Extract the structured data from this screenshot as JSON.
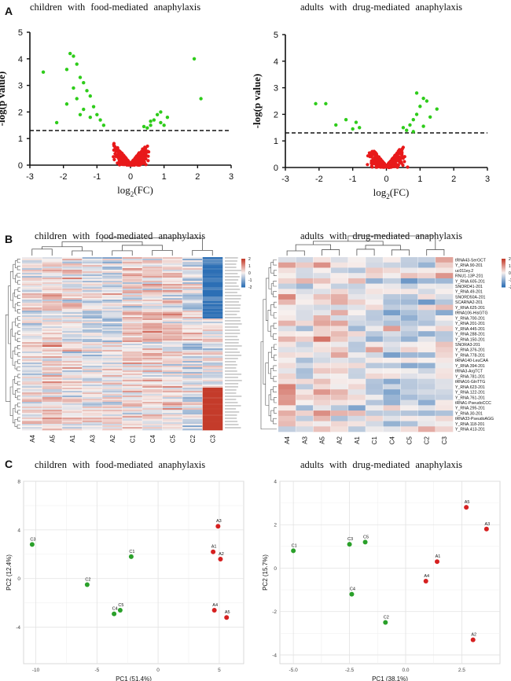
{
  "figure": {
    "panels": [
      "A",
      "B",
      "C"
    ],
    "titles": {
      "left": "children with food-mediated anaphylaxis",
      "right": "adults with drug-mediated anaphylaxis"
    }
  },
  "colors": {
    "significant": "#2ecc1a",
    "nonsignificant": "#e8191a",
    "pca_green": "#2aa02a",
    "pca_red": "#d62020",
    "heat_high": "#c43b2a",
    "heat_mid": "#f7f0ee",
    "heat_low": "#2c6fb5"
  },
  "chart_data": [
    {
      "id": "volcano-children",
      "type": "scatter",
      "title": "children with food-mediated anaphylaxis",
      "xlabel": "log2(FC)",
      "ylabel": "-log(p value)",
      "xlim": [
        -3,
        3
      ],
      "ylim": [
        0,
        5
      ],
      "xticks": [
        "-3",
        "-2",
        "-1",
        "0",
        "1",
        "2",
        "3"
      ],
      "yticks": [
        "0",
        "1",
        "2",
        "3",
        "4",
        "5"
      ],
      "threshold": 1.3,
      "significant_points": [
        [
          -2.6,
          3.5
        ],
        [
          -1.8,
          4.2
        ],
        [
          -1.7,
          4.1
        ],
        [
          -1.6,
          3.8
        ],
        [
          -1.9,
          3.6
        ],
        [
          -1.5,
          3.3
        ],
        [
          -1.4,
          3.1
        ],
        [
          -1.7,
          2.9
        ],
        [
          -1.3,
          2.8
        ],
        [
          -1.2,
          2.6
        ],
        [
          -1.6,
          2.5
        ],
        [
          -1.9,
          2.3
        ],
        [
          -1.1,
          2.2
        ],
        [
          -1.4,
          2.1
        ],
        [
          -2.2,
          1.6
        ],
        [
          -1.0,
          1.9
        ],
        [
          -1.2,
          1.8
        ],
        [
          -0.9,
          1.7
        ],
        [
          -0.8,
          1.5
        ],
        [
          -1.5,
          1.9
        ],
        [
          0.5,
          1.4
        ],
        [
          0.6,
          1.5
        ],
        [
          0.7,
          1.7
        ],
        [
          0.8,
          1.9
        ],
        [
          0.9,
          1.6
        ],
        [
          1.0,
          1.5
        ],
        [
          0.4,
          1.45
        ],
        [
          1.1,
          1.8
        ],
        [
          1.9,
          4.0
        ],
        [
          2.1,
          2.5
        ],
        [
          0.9,
          2.0
        ],
        [
          0.6,
          1.65
        ]
      ],
      "nonsignificant_points": []
    },
    {
      "id": "volcano-adults",
      "type": "scatter",
      "title": "adults with drug-mediated anaphylaxis",
      "xlabel": "log2(FC)",
      "ylabel": "-log(p value)",
      "xlim": [
        -3,
        3
      ],
      "ylim": [
        0,
        5
      ],
      "xticks": [
        "-3",
        "-2",
        "-1",
        "0",
        "1",
        "2",
        "3"
      ],
      "yticks": [
        "0",
        "1",
        "2",
        "3",
        "4",
        "5"
      ],
      "threshold": 1.3,
      "significant_points": [
        [
          -2.1,
          2.4
        ],
        [
          -1.8,
          2.4
        ],
        [
          -1.2,
          1.8
        ],
        [
          -1.5,
          1.6
        ],
        [
          -0.8,
          1.5
        ],
        [
          -0.9,
          1.7
        ],
        [
          -1.0,
          1.45
        ],
        [
          0.5,
          1.5
        ],
        [
          0.7,
          1.6
        ],
        [
          0.8,
          1.8
        ],
        [
          0.9,
          2.0
        ],
        [
          1.0,
          2.3
        ],
        [
          1.1,
          2.6
        ],
        [
          0.9,
          2.8
        ],
        [
          1.2,
          2.5
        ],
        [
          1.3,
          1.9
        ],
        [
          1.5,
          2.2
        ],
        [
          0.6,
          1.4
        ],
        [
          1.1,
          1.55
        ],
        [
          0.8,
          1.35
        ]
      ],
      "nonsignificant_points": []
    },
    {
      "id": "heatmap-children",
      "type": "heatmap",
      "title": "children with food-mediated anaphylaxis",
      "columns": [
        "A4",
        "A5",
        "A1",
        "A3",
        "A2",
        "C1",
        "C4",
        "C5",
        "C2",
        "C3"
      ],
      "legend_ticks": [
        "2",
        "1",
        "0",
        "-1",
        "-2"
      ]
    },
    {
      "id": "heatmap-adults",
      "type": "heatmap",
      "title": "adults with drug-mediated anaphylaxis",
      "columns": [
        "A4",
        "A3",
        "A5",
        "A2",
        "A1",
        "C1",
        "C4",
        "C5",
        "C2",
        "C3"
      ],
      "rows": [
        "tRNA43-SerGCT",
        "Y_RNA.90-201",
        "uc011ey.2",
        "RNU1-13P-201",
        "Y_RNA.605-201",
        "SNORD41-201",
        "Y_RNA.49-201",
        "SNORD50A-201",
        "SCARNA2-201",
        "Y_RNA.625-201",
        "tRNA106-HisGTG",
        "Y_RNA.700-201",
        "Y_RNA.201-201",
        "Y_RNA.445-201",
        "Y_RNA.288-201",
        "Y_RNA.150-201",
        "SNORA3-201",
        "Y_RNA.376-201",
        "Y_RNA.778-201",
        "tRNA140-LeuCAA",
        "Y_RNA.394-201",
        "tRNA3-ArgTCT",
        "Y_RNA.781-201",
        "tRNA16-GlnTTG",
        "Y_RNA.623-201",
        "Y_RNA.122-201",
        "Y_RNA.761-201",
        "tRNA1-PseudoCCC",
        "Y_RNA.295-201",
        "Y_RNA.30-201",
        "tRNA33-PseudoAGG",
        "Y_RNA.118-201",
        "Y_RNA.413-201"
      ],
      "legend_ticks": [
        "2",
        "1",
        "0",
        "-1",
        "-2"
      ]
    },
    {
      "id": "pca-children",
      "type": "scatter",
      "title": "children with food-mediated anaphylaxis",
      "xlabel": "PC1 (51.4%)",
      "ylabel": "PC2 (12.4%)",
      "xlim": [
        -11,
        7
      ],
      "ylim": [
        -7,
        8
      ],
      "xticks": [
        "-10",
        "-5",
        "0",
        "5"
      ],
      "yticks": [
        "-4",
        "0",
        "4",
        "8"
      ],
      "points": [
        {
          "label": "C3",
          "x": -10.3,
          "y": 2.8,
          "group": "C"
        },
        {
          "label": "C1",
          "x": -2.2,
          "y": 1.8,
          "group": "C"
        },
        {
          "label": "C2",
          "x": -5.8,
          "y": -0.5,
          "group": "C"
        },
        {
          "label": "C4",
          "x": -3.6,
          "y": -2.9,
          "group": "C"
        },
        {
          "label": "C5",
          "x": -3.1,
          "y": -2.6,
          "group": "C"
        },
        {
          "label": "A3",
          "x": 4.9,
          "y": 4.3,
          "group": "A"
        },
        {
          "label": "A1",
          "x": 4.5,
          "y": 2.2,
          "group": "A"
        },
        {
          "label": "A2",
          "x": 5.1,
          "y": 1.6,
          "group": "A"
        },
        {
          "label": "A4",
          "x": 4.6,
          "y": -2.6,
          "group": "A"
        },
        {
          "label": "A5",
          "x": 5.6,
          "y": -3.2,
          "group": "A"
        }
      ]
    },
    {
      "id": "pca-adults",
      "type": "scatter",
      "title": "adults with drug-mediated anaphylaxis",
      "xlabel": "PC1 (38.1%)",
      "ylabel": "PC2 (15.7%)",
      "xlim": [
        -5.6,
        4.2
      ],
      "ylim": [
        -4.4,
        4
      ],
      "xticks": [
        "-5.0",
        "-2.5",
        "0.0",
        "2.5"
      ],
      "yticks": [
        "-4",
        "-2",
        "0",
        "2",
        "4"
      ],
      "points": [
        {
          "label": "C1",
          "x": -5.0,
          "y": 0.8,
          "group": "C"
        },
        {
          "label": "C3",
          "x": -2.5,
          "y": 1.1,
          "group": "C"
        },
        {
          "label": "C5",
          "x": -1.8,
          "y": 1.2,
          "group": "C"
        },
        {
          "label": "C4",
          "x": -2.4,
          "y": -1.2,
          "group": "C"
        },
        {
          "label": "C2",
          "x": -0.9,
          "y": -2.5,
          "group": "C"
        },
        {
          "label": "A5",
          "x": 2.7,
          "y": 2.8,
          "group": "A"
        },
        {
          "label": "A3",
          "x": 3.6,
          "y": 1.8,
          "group": "A"
        },
        {
          "label": "A1",
          "x": 1.4,
          "y": 0.3,
          "group": "A"
        },
        {
          "label": "A4",
          "x": 0.9,
          "y": -0.6,
          "group": "A"
        },
        {
          "label": "A2",
          "x": 3.0,
          "y": -3.3,
          "group": "A"
        }
      ]
    }
  ]
}
